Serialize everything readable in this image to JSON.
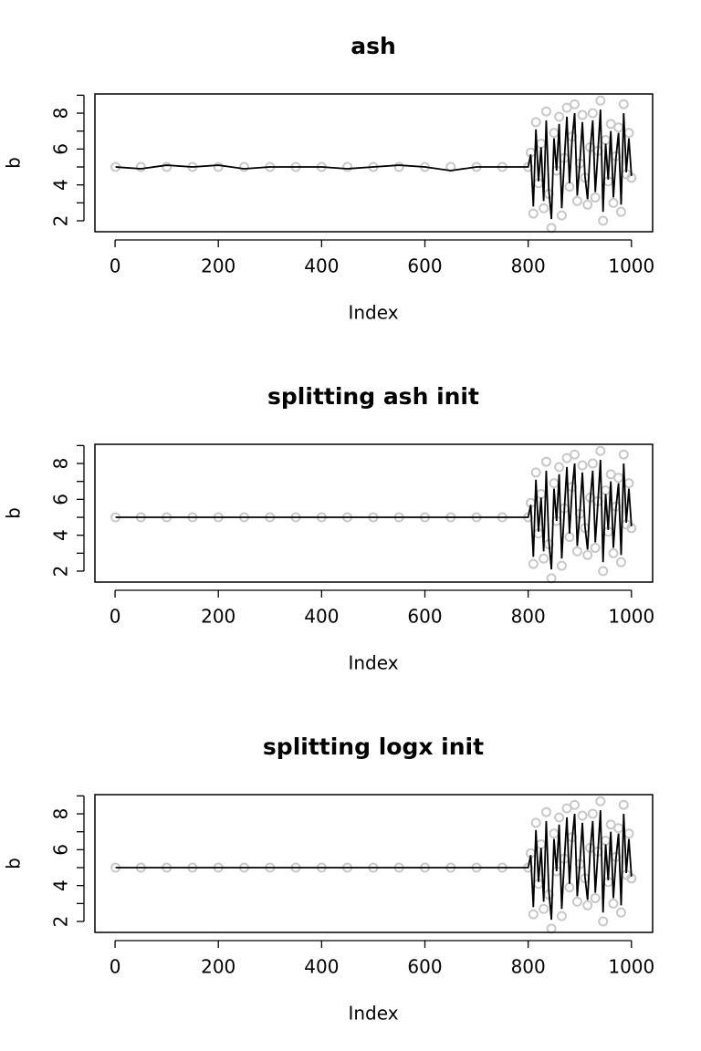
{
  "chart_data": [
    {
      "type": "line",
      "title": "ash",
      "xlabel": "Index",
      "ylabel": "b",
      "x": [
        1,
        50,
        100,
        150,
        200,
        250,
        300,
        350,
        400,
        450,
        500,
        550,
        600,
        650,
        700,
        750,
        800,
        805,
        810,
        815,
        820,
        825,
        830,
        835,
        840,
        845,
        850,
        855,
        860,
        865,
        870,
        875,
        880,
        885,
        890,
        895,
        900,
        905,
        910,
        915,
        920,
        925,
        930,
        935,
        940,
        945,
        950,
        955,
        960,
        965,
        970,
        975,
        980,
        985,
        990,
        995,
        1000
      ],
      "series": [
        {
          "mark": "circle",
          "color": "#c8c8c8",
          "values": [
            5,
            5,
            5,
            5,
            5,
            5,
            5,
            5,
            5,
            5,
            5,
            5,
            5,
            5,
            5,
            5,
            5,
            5.8,
            2.4,
            7.5,
            4.1,
            6.3,
            2.7,
            8.1,
            3.5,
            1.6,
            6.9,
            4.8,
            7.8,
            2.3,
            5.5,
            8.3,
            3.9,
            6.7,
            8.5,
            3.1,
            5.2,
            7.9,
            4.4,
            2.9,
            6.1,
            8.0,
            3.3,
            5.9,
            8.7,
            2.0,
            6.5,
            4.2,
            7.4,
            3.0,
            5.6,
            7.2,
            2.5,
            8.5,
            4.6,
            6.9,
            4.4
          ]
        },
        {
          "mark": "line",
          "color": "#000000",
          "values": [
            5.0,
            4.9,
            5.1,
            5.0,
            5.1,
            4.9,
            5.0,
            5.0,
            5.0,
            4.9,
            5.0,
            5.1,
            5.0,
            4.8,
            5.0,
            5.0,
            5.0,
            5.7,
            2.8,
            7.1,
            4.2,
            6.1,
            3.1,
            7.6,
            3.7,
            2.1,
            6.6,
            4.8,
            7.4,
            2.7,
            5.4,
            7.8,
            4.1,
            6.5,
            8.0,
            3.4,
            5.2,
            7.5,
            4.5,
            3.2,
            5.9,
            7.6,
            3.6,
            5.8,
            8.2,
            2.5,
            6.3,
            4.3,
            7.0,
            3.3,
            5.5,
            6.9,
            2.9,
            8.0,
            4.7,
            6.6,
            4.5
          ]
        }
      ],
      "xlim": [
        -39,
        1041
      ],
      "ylim": [
        1.39,
        9.07
      ],
      "xticks": [
        0,
        200,
        400,
        600,
        800,
        1000
      ],
      "yticks": [
        2,
        4,
        6,
        8
      ],
      "yminorticks": [
        3,
        5,
        7,
        9
      ]
    },
    {
      "type": "line",
      "title": "splitting ash init",
      "xlabel": "Index",
      "ylabel": "b",
      "x": [
        1,
        50,
        100,
        150,
        200,
        250,
        300,
        350,
        400,
        450,
        500,
        550,
        600,
        650,
        700,
        750,
        800,
        805,
        810,
        815,
        820,
        825,
        830,
        835,
        840,
        845,
        850,
        855,
        860,
        865,
        870,
        875,
        880,
        885,
        890,
        895,
        900,
        905,
        910,
        915,
        920,
        925,
        930,
        935,
        940,
        945,
        950,
        955,
        960,
        965,
        970,
        975,
        980,
        985,
        990,
        995,
        1000
      ],
      "series": [
        {
          "mark": "circle",
          "color": "#c8c8c8",
          "values": [
            5,
            5,
            5,
            5,
            5,
            5,
            5,
            5,
            5,
            5,
            5,
            5,
            5,
            5,
            5,
            5,
            5,
            5.8,
            2.4,
            7.5,
            4.1,
            6.3,
            2.7,
            8.1,
            3.5,
            1.6,
            6.9,
            4.8,
            7.8,
            2.3,
            5.5,
            8.3,
            3.9,
            6.7,
            8.5,
            3.1,
            5.2,
            7.9,
            4.4,
            2.9,
            6.1,
            8.0,
            3.3,
            5.9,
            8.7,
            2.0,
            6.5,
            4.2,
            7.4,
            3.0,
            5.6,
            7.2,
            2.5,
            8.5,
            4.6,
            6.9,
            4.4
          ]
        },
        {
          "mark": "line",
          "color": "#000000",
          "values": [
            5,
            5,
            5,
            5,
            5,
            5,
            5,
            5,
            5,
            5,
            5,
            5,
            5,
            5,
            5,
            5,
            5,
            5.7,
            2.8,
            7.1,
            4.2,
            6.1,
            3.1,
            7.6,
            3.7,
            2.1,
            6.6,
            4.8,
            7.4,
            2.7,
            5.4,
            7.8,
            4.1,
            6.5,
            8.0,
            3.4,
            5.2,
            7.5,
            4.5,
            3.2,
            5.9,
            7.6,
            3.6,
            5.8,
            8.2,
            2.5,
            6.3,
            4.3,
            7.0,
            3.3,
            5.5,
            6.9,
            2.9,
            8.0,
            4.7,
            6.6,
            4.5
          ]
        }
      ],
      "xlim": [
        -39,
        1041
      ],
      "ylim": [
        1.39,
        9.07
      ],
      "xticks": [
        0,
        200,
        400,
        600,
        800,
        1000
      ],
      "yticks": [
        2,
        4,
        6,
        8
      ],
      "yminorticks": [
        3,
        5,
        7,
        9
      ]
    },
    {
      "type": "line",
      "title": "splitting logx init",
      "xlabel": "Index",
      "ylabel": "b",
      "x": [
        1,
        50,
        100,
        150,
        200,
        250,
        300,
        350,
        400,
        450,
        500,
        550,
        600,
        650,
        700,
        750,
        800,
        805,
        810,
        815,
        820,
        825,
        830,
        835,
        840,
        845,
        850,
        855,
        860,
        865,
        870,
        875,
        880,
        885,
        890,
        895,
        900,
        905,
        910,
        915,
        920,
        925,
        930,
        935,
        940,
        945,
        950,
        955,
        960,
        965,
        970,
        975,
        980,
        985,
        990,
        995,
        1000
      ],
      "series": [
        {
          "mark": "circle",
          "color": "#c8c8c8",
          "values": [
            5,
            5,
            5,
            5,
            5,
            5,
            5,
            5,
            5,
            5,
            5,
            5,
            5,
            5,
            5,
            5,
            5,
            5.8,
            2.4,
            7.5,
            4.1,
            6.3,
            2.7,
            8.1,
            3.5,
            1.6,
            6.9,
            4.8,
            7.8,
            2.3,
            5.5,
            8.3,
            3.9,
            6.7,
            8.5,
            3.1,
            5.2,
            7.9,
            4.4,
            2.9,
            6.1,
            8.0,
            3.3,
            5.9,
            8.7,
            2.0,
            6.5,
            4.2,
            7.4,
            3.0,
            5.6,
            7.2,
            2.5,
            8.5,
            4.6,
            6.9,
            4.4
          ]
        },
        {
          "mark": "line",
          "color": "#000000",
          "values": [
            5,
            5,
            5,
            5,
            5,
            5,
            5,
            5,
            5,
            5,
            5,
            5,
            5,
            5,
            5,
            5,
            5,
            5.7,
            2.8,
            7.1,
            4.2,
            6.1,
            3.1,
            7.6,
            3.7,
            2.1,
            6.6,
            4.8,
            7.4,
            2.7,
            5.4,
            7.8,
            4.1,
            6.5,
            8.0,
            3.4,
            5.2,
            7.5,
            4.5,
            3.2,
            5.9,
            7.6,
            3.6,
            5.8,
            8.2,
            2.5,
            6.3,
            4.3,
            7.0,
            3.3,
            5.5,
            6.9,
            2.9,
            8.0,
            4.7,
            6.6,
            4.5
          ]
        }
      ],
      "xlim": [
        -39,
        1041
      ],
      "ylim": [
        1.39,
        9.07
      ],
      "xticks": [
        0,
        200,
        400,
        600,
        800,
        1000
      ],
      "yticks": [
        2,
        4,
        6,
        8
      ],
      "yminorticks": [
        3,
        5,
        7,
        9
      ]
    }
  ]
}
